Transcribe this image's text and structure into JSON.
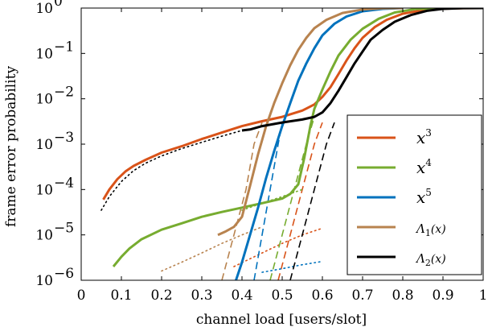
{
  "chart_data": {
    "type": "line",
    "xlabel": "channel load [users/slot]",
    "ylabel": "frame error probability",
    "xlim": [
      0,
      1
    ],
    "ylim": [
      1e-06,
      1
    ],
    "yscale": "log",
    "grid": false,
    "legend_position": "bottom-right",
    "x_ticks": [
      "0",
      "0.1",
      "0.2",
      "0.3",
      "0.4",
      "0.5",
      "0.6",
      "0.7",
      "0.8",
      "0.9",
      "1"
    ],
    "y_ticks": [
      {
        "base": "10",
        "exp": "−6",
        "value": 1e-06
      },
      {
        "base": "10",
        "exp": "−5",
        "value": 1e-05
      },
      {
        "base": "10",
        "exp": "−4",
        "value": 0.0001
      },
      {
        "base": "10",
        "exp": "−3",
        "value": 0.001
      },
      {
        "base": "10",
        "exp": "−2",
        "value": 0.01
      },
      {
        "base": "10",
        "exp": "−1",
        "value": 0.1
      },
      {
        "base": "10",
        "exp": "0",
        "value": 1
      }
    ],
    "series": [
      {
        "name": "x³",
        "legend_base": "x",
        "legend_sup": "3",
        "color": "#d95319",
        "simulated": [
          [
            0.055,
            6e-05
          ],
          [
            0.07,
            0.0001
          ],
          [
            0.09,
            0.00017
          ],
          [
            0.11,
            0.00025
          ],
          [
            0.13,
            0.00033
          ],
          [
            0.16,
            0.00045
          ],
          [
            0.2,
            0.00065
          ],
          [
            0.25,
            0.0009
          ],
          [
            0.3,
            0.0013
          ],
          [
            0.35,
            0.0018
          ],
          [
            0.4,
            0.0025
          ],
          [
            0.45,
            0.0032
          ],
          [
            0.5,
            0.004
          ],
          [
            0.55,
            0.0055
          ],
          [
            0.58,
            0.0075
          ],
          [
            0.6,
            0.011
          ],
          [
            0.62,
            0.018
          ],
          [
            0.64,
            0.035
          ],
          [
            0.66,
            0.07
          ],
          [
            0.68,
            0.13
          ],
          [
            0.7,
            0.22
          ],
          [
            0.73,
            0.38
          ],
          [
            0.76,
            0.55
          ],
          [
            0.8,
            0.75
          ],
          [
            0.85,
            0.9
          ],
          [
            0.9,
            0.97
          ],
          [
            0.95,
            0.995
          ],
          [
            1,
            1
          ]
        ],
        "dotted": [
          [
            0.38,
            2e-06
          ],
          [
            0.45,
            4e-06
          ],
          [
            0.5,
            6.5e-06
          ],
          [
            0.55,
            1e-05
          ],
          [
            0.6,
            1.4e-05
          ]
        ],
        "dashed": [
          [
            0.49,
            1e-06
          ],
          [
            0.52,
            1e-05
          ],
          [
            0.55,
            0.0001
          ],
          [
            0.58,
            0.001
          ],
          [
            0.6,
            0.003
          ]
        ]
      },
      {
        "name": "x⁴",
        "legend_base": "x",
        "legend_sup": "4",
        "color": "#77ac30",
        "simulated": [
          [
            0.08,
            2e-06
          ],
          [
            0.1,
            3.3e-06
          ],
          [
            0.12,
            5e-06
          ],
          [
            0.15,
            8e-06
          ],
          [
            0.2,
            1.3e-05
          ],
          [
            0.25,
            1.8e-05
          ],
          [
            0.3,
            2.5e-05
          ],
          [
            0.35,
            3.2e-05
          ],
          [
            0.4,
            4e-05
          ],
          [
            0.45,
            5e-05
          ],
          [
            0.5,
            6.3e-05
          ],
          [
            0.52,
            8e-05
          ],
          [
            0.54,
            0.00013
          ],
          [
            0.555,
            0.0005
          ],
          [
            0.57,
            0.0025
          ],
          [
            0.58,
            0.006
          ],
          [
            0.6,
            0.016
          ],
          [
            0.62,
            0.04
          ],
          [
            0.64,
            0.09
          ],
          [
            0.67,
            0.2
          ],
          [
            0.7,
            0.35
          ],
          [
            0.74,
            0.58
          ],
          [
            0.78,
            0.8
          ],
          [
            0.83,
            0.95
          ],
          [
            0.88,
            0.99
          ],
          [
            0.92,
            1
          ]
        ],
        "dotted": [
          [
            0.4,
            3.5e-05
          ],
          [
            0.45,
            5e-05
          ],
          [
            0.5,
            7e-05
          ],
          [
            0.55,
            0.0001
          ]
        ],
        "dashed": [
          [
            0.47,
            1e-06
          ],
          [
            0.5,
            1e-05
          ],
          [
            0.53,
            0.0001
          ],
          [
            0.56,
            0.001
          ],
          [
            0.58,
            0.004
          ]
        ]
      },
      {
        "name": "x⁵",
        "legend_base": "x",
        "legend_sup": "5",
        "color": "#0072bd",
        "simulated": [
          [
            0.385,
            1e-06
          ],
          [
            0.4,
            2.5e-06
          ],
          [
            0.42,
            1e-05
          ],
          [
            0.44,
            4e-05
          ],
          [
            0.46,
            0.00018
          ],
          [
            0.48,
            0.0007
          ],
          [
            0.5,
            0.0025
          ],
          [
            0.52,
            0.008
          ],
          [
            0.54,
            0.025
          ],
          [
            0.56,
            0.06
          ],
          [
            0.58,
            0.13
          ],
          [
            0.6,
            0.25
          ],
          [
            0.63,
            0.45
          ],
          [
            0.66,
            0.65
          ],
          [
            0.7,
            0.85
          ],
          [
            0.75,
            0.96
          ],
          [
            0.8,
            1
          ]
        ],
        "dotted": [
          [
            0.45,
            1.5e-06
          ],
          [
            0.5,
            1.8e-06
          ],
          [
            0.55,
            2.2e-06
          ],
          [
            0.6,
            2.6e-06
          ]
        ],
        "dashed": [
          [
            0.43,
            1e-06
          ],
          [
            0.45,
            1e-05
          ],
          [
            0.47,
            0.0001
          ],
          [
            0.49,
            0.001
          ],
          [
            0.5,
            0.003
          ]
        ]
      },
      {
        "name": "Λ₁(x)",
        "legend_base": "Λ",
        "legend_sub": "1",
        "legend_tail": "(x)",
        "color": "#b8834f",
        "simulated": [
          [
            0.34,
            1e-05
          ],
          [
            0.36,
            1.2e-05
          ],
          [
            0.38,
            1.5e-05
          ],
          [
            0.4,
            2.5e-05
          ],
          [
            0.42,
            0.00012
          ],
          [
            0.44,
            0.0006
          ],
          [
            0.46,
            0.0025
          ],
          [
            0.48,
            0.008
          ],
          [
            0.5,
            0.022
          ],
          [
            0.52,
            0.055
          ],
          [
            0.54,
            0.12
          ],
          [
            0.56,
            0.22
          ],
          [
            0.58,
            0.36
          ],
          [
            0.61,
            0.55
          ],
          [
            0.65,
            0.78
          ],
          [
            0.7,
            0.93
          ],
          [
            0.75,
            0.99
          ],
          [
            0.8,
            1
          ]
        ],
        "dotted": [
          [
            0.2,
            1.6e-06
          ],
          [
            0.25,
            2.5e-06
          ],
          [
            0.3,
            4e-06
          ],
          [
            0.35,
            6.5e-06
          ],
          [
            0.4,
            1e-05
          ],
          [
            0.45,
            1.5e-05
          ]
        ],
        "dashed": [
          [
            0.35,
            1e-06
          ],
          [
            0.38,
            1e-05
          ],
          [
            0.41,
            0.0001
          ],
          [
            0.43,
            0.001
          ],
          [
            0.45,
            0.003
          ]
        ]
      },
      {
        "name": "Λ₂(x)",
        "legend_base": "Λ",
        "legend_sub": "2",
        "legend_tail": "(x)",
        "color": "#000000",
        "simulated": [
          [
            0.4,
            0.002
          ],
          [
            0.42,
            0.0021
          ],
          [
            0.45,
            0.0025
          ],
          [
            0.5,
            0.003
          ],
          [
            0.55,
            0.0035
          ],
          [
            0.58,
            0.004
          ],
          [
            0.6,
            0.005
          ],
          [
            0.62,
            0.008
          ],
          [
            0.64,
            0.015
          ],
          [
            0.66,
            0.03
          ],
          [
            0.68,
            0.06
          ],
          [
            0.7,
            0.11
          ],
          [
            0.72,
            0.2
          ],
          [
            0.75,
            0.33
          ],
          [
            0.78,
            0.5
          ],
          [
            0.82,
            0.7
          ],
          [
            0.86,
            0.87
          ],
          [
            0.9,
            0.96
          ],
          [
            0.95,
            0.995
          ],
          [
            1,
            1
          ]
        ],
        "dotted": [
          [
            0.05,
            3.5e-05
          ],
          [
            0.07,
            7e-05
          ],
          [
            0.1,
            0.00015
          ],
          [
            0.13,
            0.00026
          ],
          [
            0.16,
            0.00038
          ],
          [
            0.2,
            0.00055
          ],
          [
            0.25,
            0.0008
          ],
          [
            0.3,
            0.0011
          ],
          [
            0.35,
            0.0015
          ],
          [
            0.4,
            0.002
          ]
        ],
        "dashed": [
          [
            0.52,
            1e-06
          ],
          [
            0.55,
            1e-05
          ],
          [
            0.58,
            0.0001
          ],
          [
            0.61,
            0.001
          ],
          [
            0.63,
            0.003
          ]
        ]
      }
    ]
  }
}
